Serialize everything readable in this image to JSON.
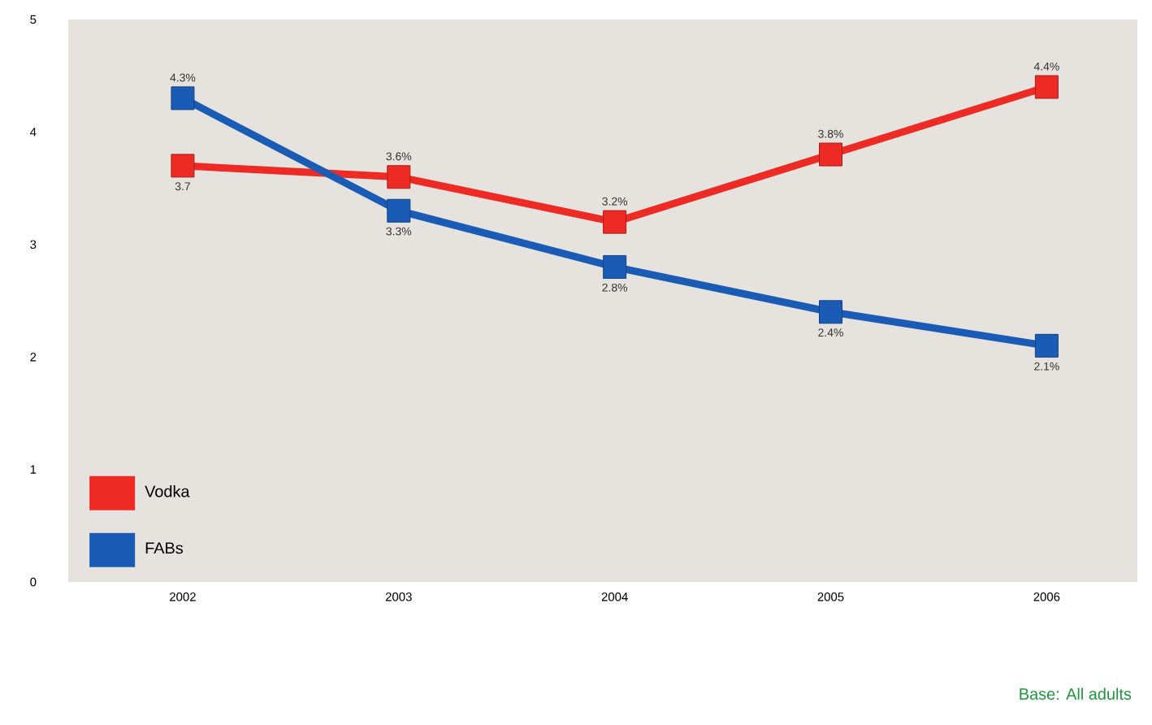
{
  "chart_data": {
    "type": "line",
    "categories": [
      "2002",
      "2003",
      "2004",
      "2005",
      "2006"
    ],
    "series": [
      {
        "name": "Vodka",
        "color": "#ee2a24",
        "values": [
          3.7,
          3.6,
          3.2,
          3.8,
          4.4
        ],
        "value_labels": [
          "3.7",
          "3.6%",
          "3.2%",
          "3.8%",
          "4.4%"
        ]
      },
      {
        "name": "FABs",
        "color": "#1a5cb5",
        "values": [
          4.3,
          3.3,
          2.8,
          2.4,
          2.1
        ],
        "value_labels": [
          "4.3%",
          "3.3%",
          "2.8%",
          "2.4%",
          "2.1%"
        ]
      }
    ],
    "ylim": [
      0,
      5
    ],
    "yticks": [
      0,
      1,
      2,
      3,
      4,
      5
    ],
    "grid": false,
    "legend": "bottom left",
    "marker": "square",
    "line_style": "solid",
    "annotations": [
      "Base: All adults"
    ]
  }
}
